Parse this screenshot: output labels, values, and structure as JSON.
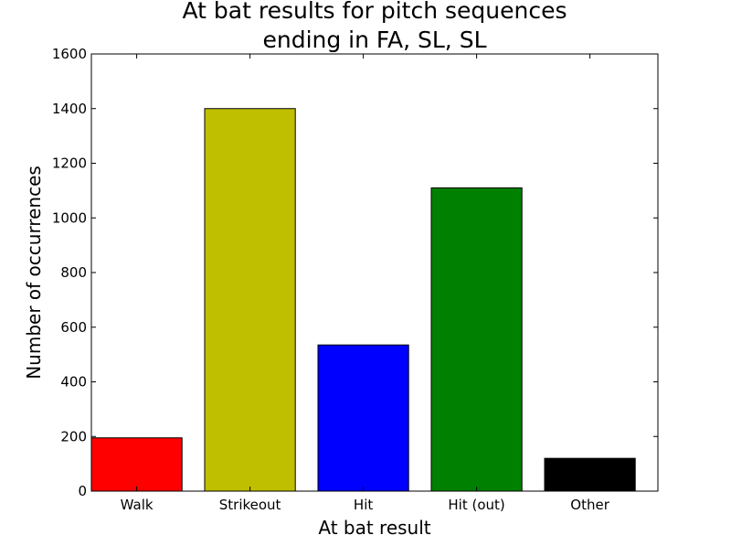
{
  "chart_data": {
    "type": "bar",
    "title": [
      "At bat results for pitch sequences",
      "ending in FA, SL, SL"
    ],
    "xlabel": "At bat result",
    "ylabel": "Number of occurrences",
    "categories": [
      "Walk",
      "Strikeout",
      "Hit",
      "Hit (out)",
      "Other"
    ],
    "values": [
      195,
      1400,
      535,
      1110,
      120
    ],
    "colors": [
      "#ff0000",
      "#bfbf00",
      "#0000ff",
      "#008000",
      "#000000"
    ],
    "ylim": [
      0,
      1600
    ],
    "yticks": [
      0,
      200,
      400,
      600,
      800,
      1000,
      1200,
      1400,
      1600
    ],
    "grid": false,
    "legend": "none"
  }
}
